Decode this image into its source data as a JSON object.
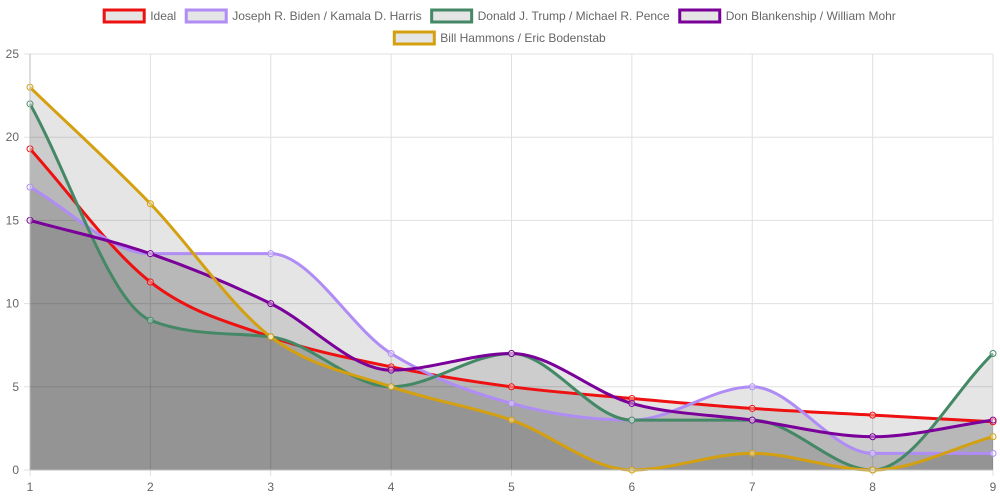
{
  "chart_data": {
    "type": "line",
    "x": [
      1,
      2,
      3,
      4,
      5,
      6,
      7,
      8,
      9
    ],
    "ylim": [
      0,
      25
    ],
    "yticks": [
      0,
      5,
      10,
      15,
      20,
      25
    ],
    "grid": true,
    "legend_position": "top",
    "series": [
      {
        "name": "Ideal",
        "color": "#ee1111",
        "values": [
          19.3,
          11.3,
          8.0,
          6.2,
          5.0,
          4.3,
          3.7,
          3.3,
          2.9
        ]
      },
      {
        "name": "Joseph R. Biden / Kamala D. Harris",
        "color": "#b08cf5",
        "values": [
          17,
          13,
          13,
          7,
          4,
          3,
          5,
          1,
          1
        ]
      },
      {
        "name": "Donald J. Trump / Michael R. Pence",
        "color": "#448866",
        "values": [
          22,
          9,
          8,
          5,
          7,
          3,
          3,
          0,
          7
        ]
      },
      {
        "name": "Don Blankenship / William Mohr",
        "color": "#7a0099",
        "values": [
          15,
          13,
          10,
          6,
          7,
          4,
          3,
          2,
          3
        ]
      },
      {
        "name": "Bill Hammons / Eric Bodenstab",
        "color": "#d4a010",
        "values": [
          23,
          16,
          8,
          5,
          3,
          0,
          1,
          0,
          2
        ]
      }
    ]
  }
}
